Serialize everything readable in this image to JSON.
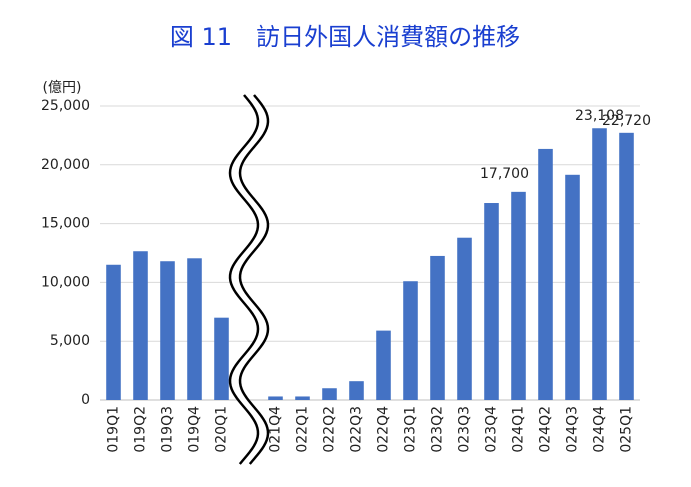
{
  "chart_data": {
    "type": "bar",
    "title": "図 11　訪日外国人消費額の推移",
    "y_label": "(億円)",
    "categories": [
      "019Q1",
      "019Q2",
      "019Q3",
      "019Q4",
      "020Q1",
      "021Q4",
      "022Q1",
      "022Q2",
      "022Q3",
      "022Q4",
      "023Q1",
      "023Q2",
      "023Q3",
      "023Q4",
      "024Q1",
      "024Q2",
      "024Q3",
      "024Q4",
      "025Q1"
    ],
    "values": [
      11500,
      12650,
      11800,
      12050,
      7000,
      300,
      300,
      1000,
      1600,
      5900,
      10100,
      12250,
      13800,
      16750,
      17700,
      21350,
      19150,
      23108,
      22720
    ],
    "value_labels": [
      null,
      null,
      null,
      null,
      null,
      null,
      null,
      null,
      null,
      null,
      null,
      null,
      null,
      null,
      "17,700",
      null,
      null,
      "23,108",
      "22,720"
    ],
    "color": "#4472c4",
    "ylim": [
      0,
      25000
    ],
    "yticks": [
      0,
      {
        "value": 5000,
        "label": "5,000"
      },
      {
        "value": 10000,
        "label": "10,000"
      },
      {
        "value": 15000,
        "label": "15,000"
      },
      {
        "value": 20000,
        "label": "20,000"
      },
      {
        "value": 25000,
        "label": "25,000"
      }
    ],
    "grid": true
  }
}
